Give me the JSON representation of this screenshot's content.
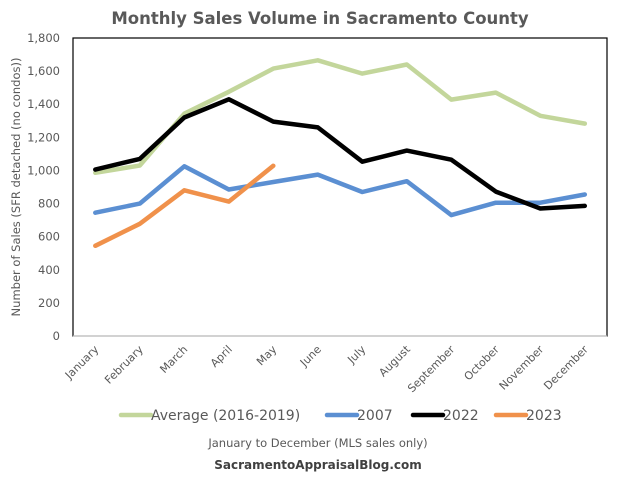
{
  "chart_data": {
    "type": "line",
    "title": "Monthly Sales Volume in Sacramento County",
    "xlabel": "",
    "ylabel": "Number of Sales (SFR detached (no condos))",
    "ylim": [
      0,
      1800
    ],
    "yticks": [
      0,
      200,
      400,
      600,
      800,
      1000,
      1200,
      1400,
      1600,
      1800
    ],
    "ytick_labels": [
      "0",
      "200",
      "400",
      "600",
      "800",
      "1,000",
      "1,200",
      "1,400",
      "1,600",
      "1,800"
    ],
    "categories": [
      "January",
      "February",
      "March",
      "April",
      "May",
      "June",
      "July",
      "August",
      "September",
      "October",
      "November",
      "December"
    ],
    "grid": false,
    "legend_position": "bottom",
    "series": [
      {
        "name": "Average (2016-2019)",
        "color": "#c3d69b",
        "values": [
          986,
          1030,
          1343,
          1475,
          1615,
          1665,
          1585,
          1640,
          1428,
          1470,
          1330,
          1283
        ]
      },
      {
        "name": "2007",
        "color": "#5b8fd2",
        "values": [
          745,
          800,
          1025,
          885,
          930,
          975,
          870,
          935,
          730,
          805,
          805,
          855
        ]
      },
      {
        "name": "2022",
        "color": "#000000",
        "values": [
          1005,
          1070,
          1320,
          1430,
          1295,
          1260,
          1053,
          1120,
          1065,
          872,
          770,
          786
        ]
      },
      {
        "name": "2023",
        "color": "#f0914b",
        "values": [
          545,
          678,
          880,
          812,
          1028
        ]
      }
    ],
    "annotations": {
      "subtitle": "January to December (MLS sales only)",
      "source": "SacramentoAppraisalBlog.com"
    }
  }
}
